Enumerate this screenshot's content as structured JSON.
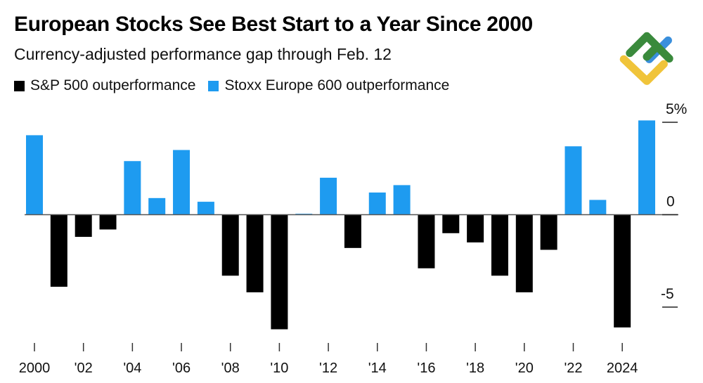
{
  "chart_data": {
    "type": "bar",
    "title": "European Stocks See Best Start to a Year Since 2000",
    "subtitle": "Currency-adjusted performance gap through Feb. 12",
    "legend": [
      {
        "name": "S&P 500 outperformance",
        "color": "#000000"
      },
      {
        "name": "Stoxx Europe 600 outperformance",
        "color": "#1e9bf0"
      }
    ],
    "legend_placement": "top-left",
    "categories": [
      2000,
      2001,
      2002,
      2003,
      2004,
      2005,
      2006,
      2007,
      2008,
      2009,
      2010,
      2011,
      2012,
      2013,
      2014,
      2015,
      2016,
      2017,
      2018,
      2019,
      2020,
      2021,
      2022,
      2023,
      2024,
      2025
    ],
    "values": [
      4.3,
      -3.9,
      -1.2,
      -0.8,
      2.9,
      0.9,
      3.5,
      0.7,
      -3.3,
      -4.2,
      -6.2,
      0.05,
      2.0,
      -1.8,
      1.2,
      1.6,
      -2.9,
      -1.0,
      -1.5,
      -3.3,
      -4.2,
      -1.9,
      3.7,
      0.8,
      -6.1,
      5.1
    ],
    "x_tick_labels": [
      {
        "year": 2000,
        "label": "2000"
      },
      {
        "year": 2002,
        "label": "'02"
      },
      {
        "year": 2004,
        "label": "'04"
      },
      {
        "year": 2006,
        "label": "'06"
      },
      {
        "year": 2008,
        "label": "'08"
      },
      {
        "year": 2010,
        "label": "'10"
      },
      {
        "year": 2012,
        "label": "'12"
      },
      {
        "year": 2014,
        "label": "'14"
      },
      {
        "year": 2016,
        "label": "'16"
      },
      {
        "year": 2018,
        "label": "'18"
      },
      {
        "year": 2020,
        "label": "'20"
      },
      {
        "year": 2022,
        "label": "'22"
      },
      {
        "year": 2024,
        "label": "2024"
      }
    ],
    "y_ticks": [
      {
        "value": 5,
        "label": "5%"
      },
      {
        "value": 0,
        "label": "0"
      },
      {
        "value": -5,
        "label": "-5"
      }
    ],
    "ylim": [
      -7,
      5.5
    ],
    "y_axis_side": "right",
    "grid": false
  },
  "logo": {
    "colors": [
      "#3a8a3c",
      "#3a8fdc",
      "#f0c43a"
    ]
  }
}
